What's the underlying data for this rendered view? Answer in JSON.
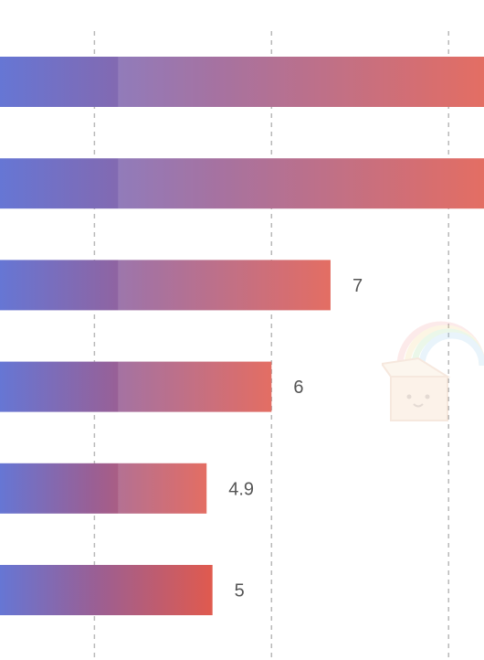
{
  "chart_data": {
    "type": "bar",
    "orientation": "horizontal",
    "grid": true,
    "gridlines_x": [
      3,
      6,
      9
    ],
    "xlim": [
      1.4,
      9.6
    ],
    "series": [
      {
        "values": [
          9.6,
          9.6,
          7,
          6,
          4.9,
          5
        ]
      }
    ],
    "segment_split": 3.4,
    "data_labels": [
      "",
      "",
      "7",
      "6",
      "4.9",
      "5"
    ],
    "colors": {
      "gradient_start": "#6676d4",
      "gradient_mid": "#9a5f94",
      "gradient_end": "#e05a4e",
      "grid": "#b8b8b8",
      "label": "#555555"
    }
  },
  "watermark": {
    "icon": "rainbow-gift-box-icon"
  }
}
